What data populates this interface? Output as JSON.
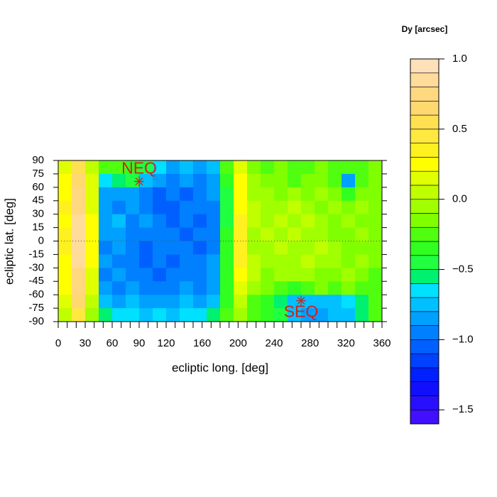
{
  "chart_data": {
    "type": "contour",
    "xlabel": "ecliptic long. [deg]",
    "ylabel": "ecliptic lat. [deg]",
    "colorbar_title": "Dy [arcsec]",
    "xlim": [
      0,
      360
    ],
    "ylim": [
      -90,
      90
    ],
    "xticks": [
      0,
      30,
      60,
      90,
      120,
      160,
      200,
      240,
      280,
      320,
      360
    ],
    "xminorticks": [
      0,
      10,
      20,
      30,
      40,
      50,
      60,
      70,
      80,
      90,
      100,
      110,
      120,
      130,
      140,
      150,
      160,
      170,
      180,
      190,
      200,
      210,
      220,
      230,
      240,
      250,
      260,
      270,
      280,
      290,
      300,
      310,
      320,
      330,
      340,
      350,
      360
    ],
    "yticks": [
      90,
      75,
      60,
      45,
      30,
      15,
      0,
      -15,
      -30,
      -45,
      -60,
      -75,
      -90
    ],
    "hlines": [
      0
    ],
    "x": [
      7.5,
      22.5,
      37.5,
      52.5,
      67.5,
      82.5,
      97.5,
      112.5,
      127.5,
      142.5,
      157.5,
      172.5,
      187.5,
      202.5,
      217.5,
      232.5,
      247.5,
      262.5,
      277.5,
      292.5,
      307.5,
      322.5,
      337.5,
      352.5
    ],
    "y": [
      82.5,
      67.5,
      52.5,
      37.5,
      22.5,
      7.5,
      -7.5,
      -22.5,
      -37.5,
      -52.5,
      -67.5,
      -82.5
    ],
    "z": [
      [
        0.1,
        0.5,
        0.0,
        -0.3,
        -0.3,
        -0.4,
        -0.5,
        -0.7,
        -0.9,
        -0.8,
        -0.9,
        -0.8,
        -0.3,
        0.1,
        -0.2,
        -0.3,
        -0.2,
        -0.3,
        -0.3,
        -0.2,
        -0.3,
        -0.3,
        -0.3,
        -0.2
      ],
      [
        0.2,
        0.6,
        0.1,
        -0.7,
        -0.6,
        -0.5,
        -0.8,
        -0.9,
        -1.0,
        -0.9,
        -1.0,
        -0.9,
        -0.4,
        0.2,
        -0.1,
        -0.2,
        -0.2,
        -0.3,
        -0.2,
        -0.2,
        -0.3,
        -0.9,
        -0.3,
        -0.2
      ],
      [
        0.2,
        0.7,
        0.1,
        -0.9,
        -0.9,
        -0.9,
        -1.0,
        -1.1,
        -1.0,
        -1.1,
        -1.0,
        -0.9,
        -0.5,
        0.2,
        -0.1,
        -0.1,
        -0.2,
        -0.1,
        -0.2,
        -0.1,
        -0.2,
        -0.4,
        -0.2,
        -0.2
      ],
      [
        0.3,
        0.7,
        0.1,
        -0.9,
        -1.0,
        -0.9,
        -1.0,
        -1.1,
        -1.1,
        -1.0,
        -1.0,
        -1.0,
        -0.5,
        0.2,
        0.0,
        -0.1,
        -0.1,
        0.0,
        -0.1,
        -0.2,
        -0.1,
        -0.2,
        -0.1,
        -0.2
      ],
      [
        0.2,
        0.8,
        0.2,
        -0.9,
        -0.8,
        -1.0,
        -0.9,
        -1.0,
        -1.1,
        -1.0,
        -1.1,
        -1.0,
        -0.5,
        0.3,
        0.0,
        -0.1,
        0.0,
        -0.1,
        0.0,
        -0.1,
        -0.2,
        -0.1,
        -0.2,
        -0.2
      ],
      [
        0.3,
        0.8,
        0.2,
        -0.9,
        -0.9,
        -1.0,
        -1.0,
        -1.0,
        -1.0,
        -1.1,
        -1.0,
        -1.0,
        -0.4,
        0.3,
        -0.1,
        0.0,
        -0.1,
        0.0,
        -0.1,
        -0.1,
        -0.2,
        -0.2,
        -0.1,
        -0.2
      ],
      [
        0.3,
        0.8,
        0.2,
        -1.0,
        -0.9,
        -1.0,
        -1.1,
        -1.0,
        -1.0,
        -1.0,
        -1.1,
        -1.0,
        -0.4,
        0.3,
        -0.1,
        -0.1,
        0.0,
        -0.1,
        -0.1,
        0.0,
        -0.1,
        -0.2,
        -0.2,
        -0.2
      ],
      [
        0.2,
        0.8,
        0.2,
        -0.9,
        -1.0,
        -1.0,
        -1.1,
        -1.0,
        -1.1,
        -1.0,
        -1.0,
        -0.9,
        -0.4,
        0.3,
        0.0,
        -0.1,
        -0.1,
        -0.1,
        0.0,
        -0.1,
        -0.1,
        -0.2,
        -0.1,
        -0.2
      ],
      [
        0.2,
        0.7,
        0.1,
        -1.0,
        -0.9,
        -1.0,
        -1.0,
        -1.1,
        -1.0,
        -1.0,
        -1.0,
        -0.9,
        -0.4,
        0.2,
        0.0,
        -0.2,
        -0.1,
        -0.1,
        -0.1,
        -0.2,
        -0.2,
        -0.1,
        -0.2,
        -0.3
      ],
      [
        0.2,
        0.7,
        0.1,
        -0.9,
        -1.0,
        -0.9,
        -1.0,
        -1.0,
        -1.0,
        -0.9,
        -1.0,
        -0.9,
        -0.4,
        0.1,
        -0.1,
        -0.2,
        -0.3,
        -0.4,
        -0.3,
        -0.2,
        -0.3,
        -0.2,
        -0.3,
        -0.3
      ],
      [
        0.1,
        0.6,
        0.0,
        -0.8,
        -0.9,
        -0.8,
        -0.9,
        -0.9,
        -0.9,
        -0.8,
        -0.9,
        -0.8,
        -0.4,
        0.0,
        -0.3,
        -0.4,
        -0.6,
        -0.8,
        -0.8,
        -0.8,
        -0.8,
        -0.7,
        -0.6,
        -0.3
      ],
      [
        0.0,
        0.4,
        -0.1,
        -0.6,
        -0.7,
        -0.7,
        -0.8,
        -0.7,
        -0.8,
        -0.7,
        -0.7,
        -0.6,
        -0.3,
        -0.1,
        -0.3,
        -0.4,
        -0.5,
        -0.8,
        -0.9,
        -0.9,
        -0.8,
        -0.8,
        -0.6,
        -0.3
      ]
    ],
    "levels": [
      -1.6,
      -1.5,
      -1.4,
      -1.3,
      -1.2,
      -1.1,
      -1.0,
      -0.9,
      -0.8,
      -0.7,
      -0.6,
      -0.5,
      -0.4,
      -0.3,
      -0.2,
      -0.1,
      0.0,
      0.1,
      0.2,
      0.3,
      0.4,
      0.5,
      0.6,
      0.7,
      0.8,
      0.9,
      1.0
    ],
    "colors": [
      "#4010ff",
      "#2810ff",
      "#1010ff",
      "#0020ff",
      "#0040ff",
      "#0060ff",
      "#0080ff",
      "#00a0ff",
      "#00c0ff",
      "#00e0ff",
      "#00f070",
      "#20ff40",
      "#30ff20",
      "#50ff10",
      "#80ff00",
      "#a0ff00",
      "#c0ff00",
      "#e0ff00",
      "#ffff00",
      "#fff020",
      "#ffe840",
      "#ffe050",
      "#ffd870",
      "#ffd880",
      "#ffdc9a",
      "#ffe0b8"
    ],
    "colorbar_ticks": [
      {
        "value": -1.5,
        "label": "−1.5"
      },
      {
        "value": -1.0,
        "label": "−1.0"
      },
      {
        "value": -0.5,
        "label": "−0.5"
      },
      {
        "value": 0,
        "label": "0.0"
      },
      0.5,
      {
        "value": 1.0,
        "label": "1.0"
      }
    ],
    "annotations": [
      {
        "text": "NEQ",
        "x": 90,
        "y": 66.56
      },
      {
        "text": "SEQ",
        "x": 270,
        "y": -66.56
      }
    ],
    "annotation_color": "#d02020"
  }
}
